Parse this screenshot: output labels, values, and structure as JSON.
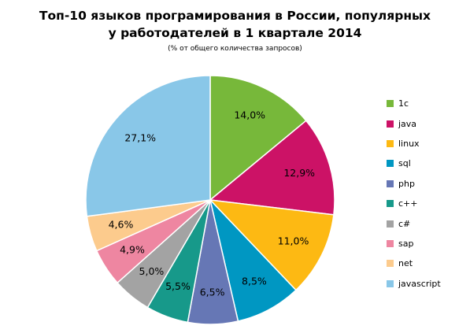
{
  "chart_data": {
    "type": "pie",
    "title": "Топ-10 языков програмирования в России, популярных\nу работодателей в 1 квартале 2014",
    "subtitle": "(% от общего количества запросов)",
    "categories": [
      "1c",
      "java",
      "linux",
      "sql",
      "php",
      "c++",
      "c#",
      "sap",
      "net",
      "javascript"
    ],
    "values": [
      14.0,
      12.9,
      11.0,
      8.5,
      6.5,
      5.5,
      5.0,
      4.9,
      4.6,
      27.1
    ],
    "value_labels": [
      "14,0%",
      "12,9%",
      "11,0%",
      "8,5%",
      "6,5%",
      "5,5%",
      "5,0%",
      "4,9%",
      "4,6%",
      "27,1%"
    ],
    "colors": [
      "#77B83A",
      "#CC1266",
      "#FDB913",
      "#0097C2",
      "#6677B5",
      "#17998A",
      "#A3A3A3",
      "#EE86A1",
      "#FCCB8D",
      "#89C7E8"
    ],
    "legend_position": "right",
    "start_angle": "12 o'clock",
    "direction": "clockwise"
  }
}
